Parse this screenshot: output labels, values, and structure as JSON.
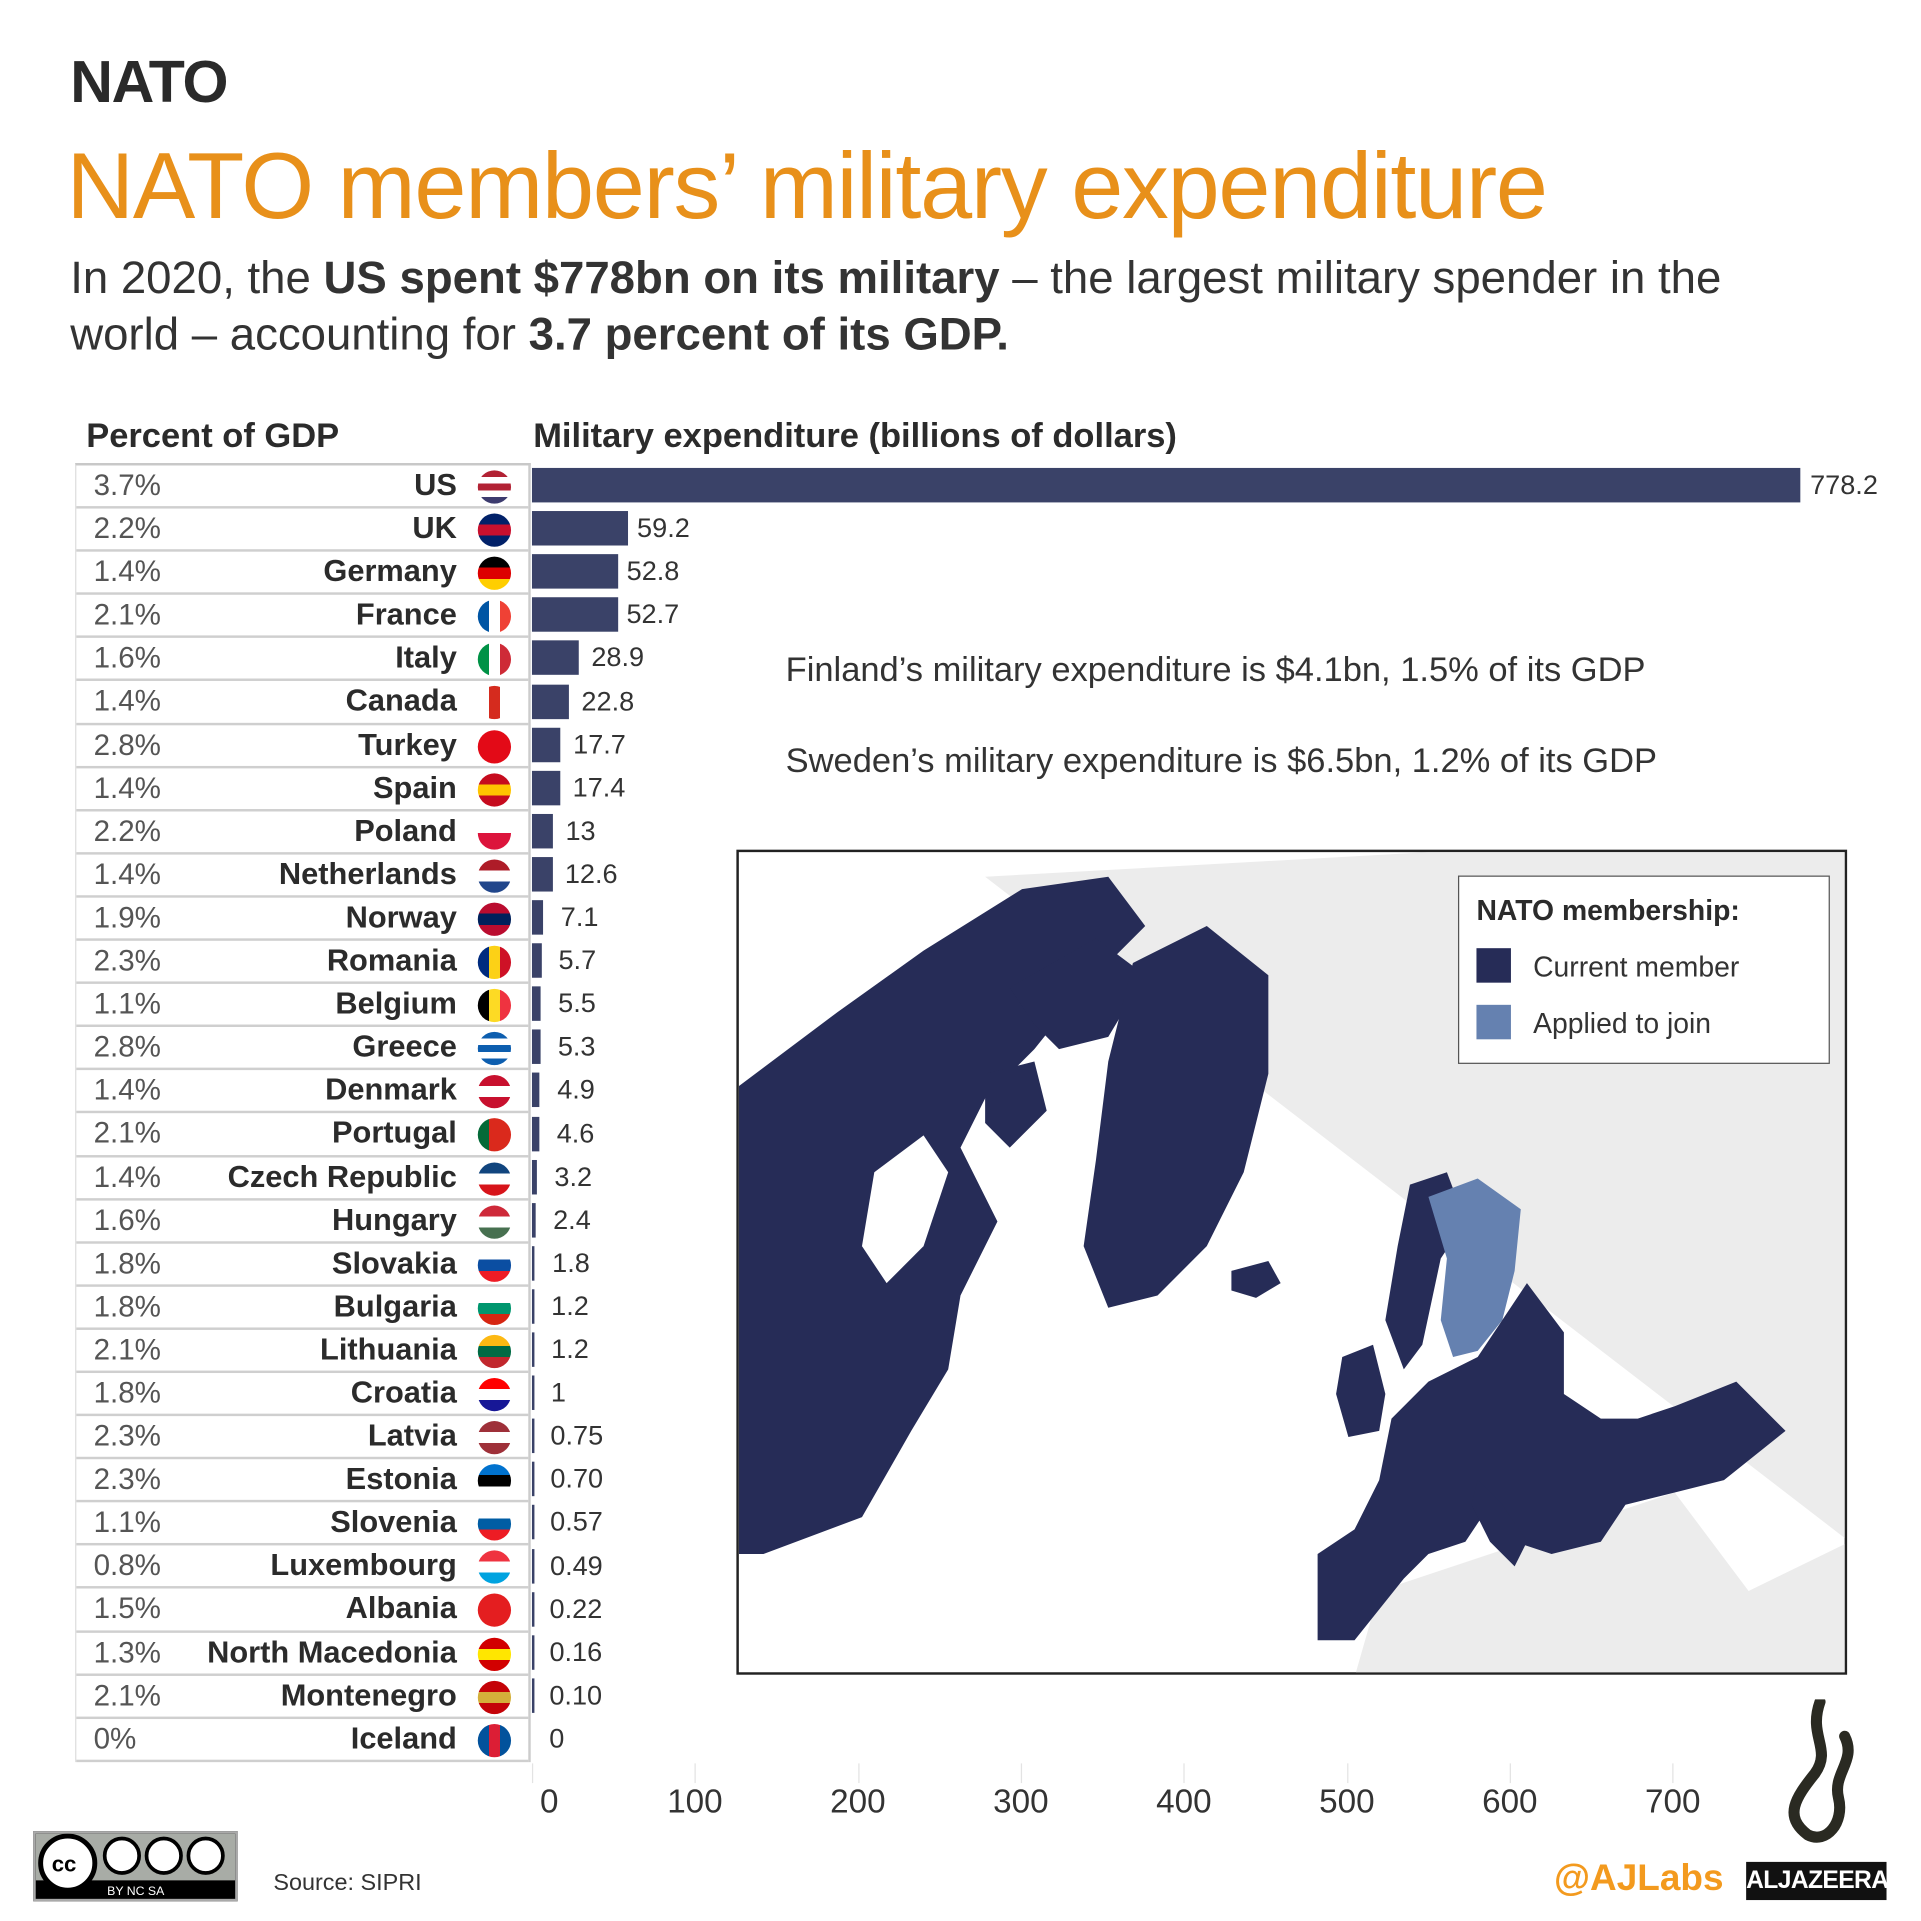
{
  "kicker": "NATO",
  "title": "NATO members’ military expenditure",
  "subtitle": {
    "p1": "In 2020, the ",
    "b1": "US spent $778bn on its military",
    "p2": " – the largest military spender in the world – accounting for ",
    "b2": "3.7 percent of its GDP."
  },
  "headers": {
    "pct": "Percent of GDP",
    "spend": "Military expenditure (billions of dollars)"
  },
  "notes": {
    "finland": "Finland’s military expenditure is $4.1bn, 1.5% of its GDP",
    "sweden": "Sweden’s military expenditure is $6.5bn, 1.2% of its GDP"
  },
  "legend": {
    "title": "NATO membership:",
    "items": [
      {
        "label": "Current member",
        "color": "#262c57"
      },
      {
        "label": "Applied to join",
        "color": "#6581b0"
      }
    ]
  },
  "colors": {
    "bar": "#3a4268",
    "accent": "#E8901A",
    "land": "#ececec"
  },
  "chart_data": {
    "type": "bar",
    "orientation": "horizontal",
    "xlabel": "Military expenditure (billions of dollars)",
    "xlim": [
      0,
      780
    ],
    "xticks": [
      "0",
      "100",
      "200",
      "300",
      "400",
      "500",
      "600",
      "700"
    ],
    "categories": [
      "US",
      "UK",
      "Germany",
      "France",
      "Italy",
      "Canada",
      "Turkey",
      "Spain",
      "Poland",
      "Netherlands",
      "Norway",
      "Romania",
      "Belgium",
      "Greece",
      "Denmark",
      "Portugal",
      "Czech Republic",
      "Hungary",
      "Slovakia",
      "Bulgaria",
      "Lithuania",
      "Croatia",
      "Latvia",
      "Estonia",
      "Slovenia",
      "Luxembourg",
      "Albania",
      "North Macedonia",
      "Montenegro",
      "Iceland"
    ],
    "values": [
      778.2,
      59.2,
      52.8,
      52.7,
      28.9,
      22.8,
      17.7,
      17.4,
      13,
      12.6,
      7.1,
      5.7,
      5.5,
      5.3,
      4.9,
      4.6,
      3.2,
      2.4,
      1.8,
      1.2,
      1.2,
      1,
      0.75,
      0.7,
      0.57,
      0.49,
      0.22,
      0.16,
      0.1,
      0
    ],
    "value_labels": [
      "778.2",
      "59.2",
      "52.8",
      "52.7",
      "28.9",
      "22.8",
      "17.7",
      "17.4",
      "13",
      "12.6",
      "7.1",
      "5.7",
      "5.5",
      "5.3",
      "4.9",
      "4.6",
      "3.2",
      "2.4",
      "1.8",
      "1.2",
      "1.2",
      "1",
      "0.75",
      "0.70",
      "0.57",
      "0.49",
      "0.22",
      "0.16",
      "0.10",
      "0"
    ],
    "pct_gdp": [
      "3.7%",
      "2.2%",
      "1.4%",
      "2.1%",
      "1.6%",
      "1.4%",
      "2.8%",
      "1.4%",
      "2.2%",
      "1.4%",
      "1.9%",
      "2.3%",
      "1.1%",
      "2.8%",
      "1.4%",
      "2.1%",
      "1.4%",
      "1.6%",
      "1.8%",
      "1.8%",
      "2.1%",
      "1.8%",
      "2.3%",
      "2.3%",
      "1.1%",
      "0.8%",
      "1.5%",
      "1.3%",
      "2.1%",
      "0%"
    ]
  },
  "flags": [
    {
      "c": [
        "#b22234",
        "#ffffff",
        "#b22234",
        "#ffffff",
        "#3c3b6e"
      ],
      "d": "h"
    },
    {
      "c": [
        "#012169",
        "#c8102e",
        "#012169"
      ],
      "d": "h"
    },
    {
      "c": [
        "#000000",
        "#dd0000",
        "#ffce00"
      ],
      "d": "h"
    },
    {
      "c": [
        "#0055a4",
        "#ffffff",
        "#ef4135"
      ],
      "d": "v"
    },
    {
      "c": [
        "#009246",
        "#ffffff",
        "#ce2b37"
      ],
      "d": "v"
    },
    {
      "c": [
        "#ffffff",
        "#d52b1e",
        "#ffffff"
      ],
      "d": "v"
    },
    {
      "c": [
        "#e30a17",
        "#e30a17",
        "#e30a17"
      ],
      "d": "h"
    },
    {
      "c": [
        "#c60b1e",
        "#ffc400",
        "#c60b1e"
      ],
      "d": "h"
    },
    {
      "c": [
        "#ffffff",
        "#dc143c"
      ],
      "d": "h"
    },
    {
      "c": [
        "#ae1c28",
        "#ffffff",
        "#21468b"
      ],
      "d": "h"
    },
    {
      "c": [
        "#ba0c2f",
        "#00205b",
        "#ba0c2f"
      ],
      "d": "h"
    },
    {
      "c": [
        "#002b7f",
        "#fcd116",
        "#ce1126"
      ],
      "d": "v"
    },
    {
      "c": [
        "#000000",
        "#fdda24",
        "#ef3340"
      ],
      "d": "v"
    },
    {
      "c": [
        "#0d5eaf",
        "#ffffff",
        "#0d5eaf",
        "#ffffff",
        "#0d5eaf"
      ],
      "d": "h"
    },
    {
      "c": [
        "#c8102e",
        "#ffffff",
        "#c8102e"
      ],
      "d": "h"
    },
    {
      "c": [
        "#046a38",
        "#da291c",
        "#da291c"
      ],
      "d": "v"
    },
    {
      "c": [
        "#11457e",
        "#ffffff",
        "#d7141a"
      ],
      "d": "h"
    },
    {
      "c": [
        "#ce2939",
        "#ffffff",
        "#477050"
      ],
      "d": "h"
    },
    {
      "c": [
        "#ffffff",
        "#0b4ea2",
        "#ee1c25"
      ],
      "d": "h"
    },
    {
      "c": [
        "#ffffff",
        "#00966e",
        "#d62612"
      ],
      "d": "h"
    },
    {
      "c": [
        "#fdb913",
        "#006a44",
        "#c1272d"
      ],
      "d": "h"
    },
    {
      "c": [
        "#ff0000",
        "#ffffff",
        "#171796"
      ],
      "d": "h"
    },
    {
      "c": [
        "#9e3039",
        "#ffffff",
        "#9e3039"
      ],
      "d": "h"
    },
    {
      "c": [
        "#0072ce",
        "#000000",
        "#ffffff"
      ],
      "d": "h"
    },
    {
      "c": [
        "#ffffff",
        "#005da4",
        "#ed1c24"
      ],
      "d": "h"
    },
    {
      "c": [
        "#ef3340",
        "#ffffff",
        "#00a3e0"
      ],
      "d": "h"
    },
    {
      "c": [
        "#e41e20",
        "#e41e20"
      ],
      "d": "h"
    },
    {
      "c": [
        "#d20000",
        "#ffe600",
        "#d20000"
      ],
      "d": "h"
    },
    {
      "c": [
        "#c40308",
        "#d4af3a",
        "#c40308"
      ],
      "d": "h"
    },
    {
      "c": [
        "#02529c",
        "#dc1e35",
        "#02529c"
      ],
      "d": "v"
    }
  ],
  "footer": {
    "source": "Source: SIPRI",
    "handle": "@AJLabs",
    "brand": "ALJAZEERA",
    "license": "BY NC SA"
  }
}
